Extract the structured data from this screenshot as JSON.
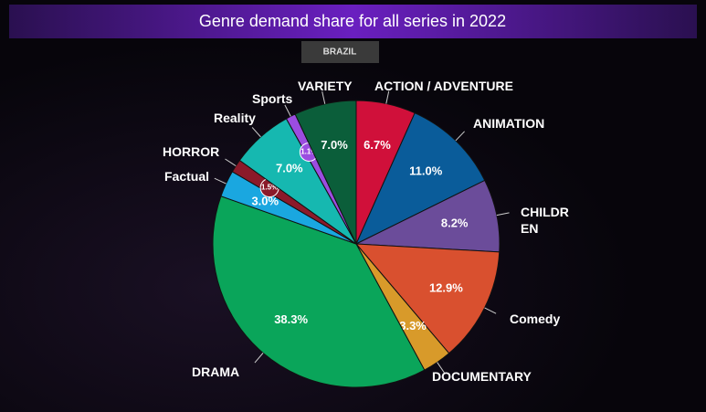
{
  "chart_data": {
    "type": "pie",
    "title": "Genre demand share for all series in 2022",
    "subtitle": "BRAZIL",
    "categories": [
      "ACTION / ADVENTURE",
      "ANIMATION",
      "CHILDR\nEN",
      "Comedy",
      "DOCUMENTARY",
      "DRAMA",
      "Factual",
      "HORROR",
      "Reality",
      "Sports",
      "VARIETY"
    ],
    "values": [
      6.7,
      11.0,
      8.2,
      12.9,
      3.3,
      38.3,
      3.0,
      1.5,
      7.0,
      1.1,
      7.0
    ],
    "value_labels": [
      "6.7%",
      "11.0%",
      "8.2%",
      "12.9%",
      "3.3%",
      "38.3%",
      "3.0%",
      "1.5%",
      "7.0%",
      "1.1%",
      "7.0%"
    ],
    "colors": [
      "#d0103a",
      "#0a5c9a",
      "#6b4c9a",
      "#d9502f",
      "#d89a2a",
      "#0aa55a",
      "#1aa7e0",
      "#8b1a2a",
      "#16b8b0",
      "#9b4de0",
      "#0b5e3a"
    ]
  }
}
